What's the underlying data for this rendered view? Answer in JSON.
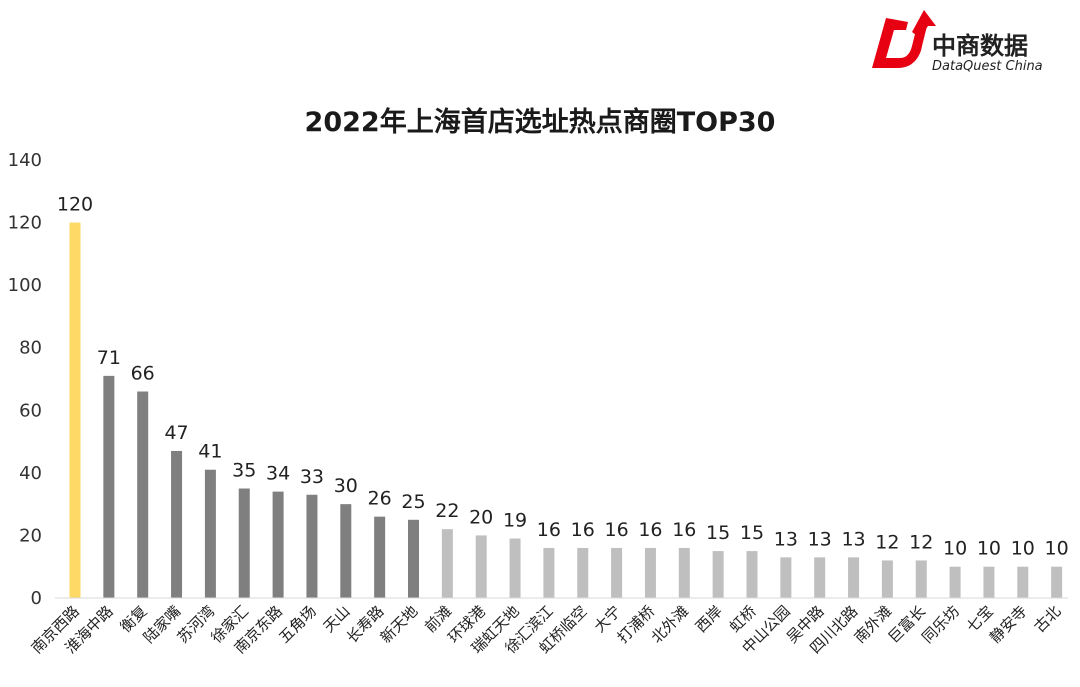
{
  "logo": {
    "name": "中商数据",
    "subtitle": "DataQuest China",
    "colors": {
      "red": "#e60012",
      "dark": "#222222"
    }
  },
  "chart_data": {
    "type": "bar",
    "title": "2022年上海首店选址热点商圈TOP30",
    "xlabel": "",
    "ylabel": "",
    "ylim": [
      0,
      140
    ],
    "yticks": [
      0,
      20,
      40,
      60,
      80,
      100,
      120,
      140
    ],
    "grid": false,
    "legend": "none",
    "categories": [
      "南京西路",
      "淮海中路",
      "衡复",
      "陆家嘴",
      "苏河湾",
      "徐家汇",
      "南京东路",
      "五角场",
      "天山",
      "长寿路",
      "新天地",
      "前滩",
      "环球港",
      "瑞虹天地",
      "徐汇滨江",
      "虹桥临空",
      "大宁",
      "打浦桥",
      "北外滩",
      "西岸",
      "虹桥",
      "中山公园",
      "吴中路",
      "四川北路",
      "南外滩",
      "巨富长",
      "同乐坊",
      "七宝",
      "静安寺",
      "古北"
    ],
    "values": [
      120,
      71,
      66,
      47,
      41,
      35,
      34,
      33,
      30,
      26,
      25,
      22,
      20,
      19,
      16,
      16,
      16,
      16,
      16,
      15,
      15,
      13,
      13,
      13,
      12,
      12,
      10,
      10,
      10,
      10
    ],
    "colors": {
      "highlight": "#ffd966",
      "dark": "#7f7f7f",
      "light": "#bfbfbf",
      "highlight_count": 1,
      "dark_count": 10
    }
  }
}
